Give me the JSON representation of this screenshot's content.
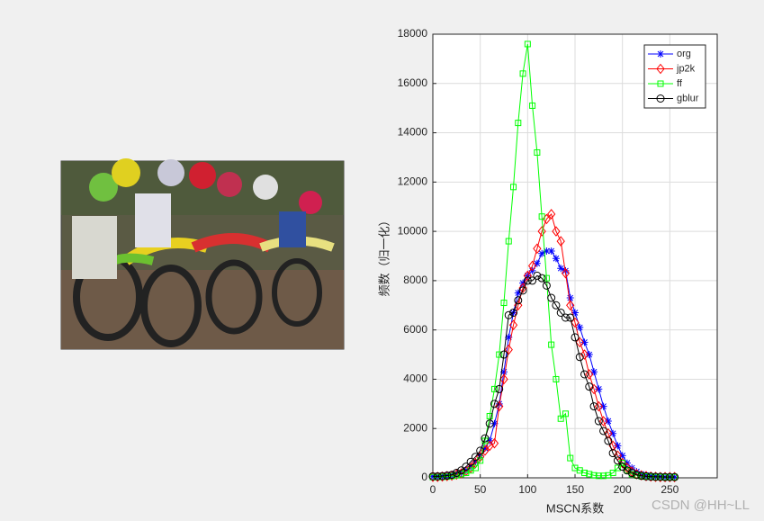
{
  "chart_data": {
    "type": "line",
    "xlabel": "MSCN系数",
    "ylabel": "频数（归一化）",
    "watermark": "CSDN @HH~LL",
    "xlim": [
      0,
      300
    ],
    "xticks": [
      0,
      50,
      100,
      150,
      200,
      250
    ],
    "ylim": [
      0,
      18000
    ],
    "yticks": [
      0,
      2000,
      4000,
      6000,
      8000,
      10000,
      12000,
      14000,
      16000,
      18000
    ],
    "grid": true,
    "legend": "upper right",
    "x": [
      0,
      5,
      10,
      15,
      20,
      25,
      30,
      35,
      40,
      45,
      50,
      55,
      60,
      65,
      70,
      75,
      80,
      85,
      90,
      95,
      100,
      105,
      110,
      115,
      120,
      125,
      130,
      135,
      140,
      145,
      150,
      155,
      160,
      165,
      170,
      175,
      180,
      185,
      190,
      195,
      200,
      205,
      210,
      215,
      220,
      225,
      230,
      235,
      240,
      245,
      250,
      255
    ],
    "series": [
      {
        "name": "org",
        "color": "#0000ff",
        "marker": "star",
        "values": [
          50,
          50,
          60,
          80,
          100,
          150,
          200,
          300,
          450,
          650,
          900,
          1200,
          1500,
          2200,
          3000,
          4300,
          5700,
          6700,
          7500,
          7900,
          8200,
          8400,
          8700,
          9100,
          9200,
          9200,
          8900,
          8500,
          8400,
          7300,
          6700,
          6100,
          5500,
          5000,
          4300,
          3600,
          2900,
          2300,
          1800,
          1300,
          900,
          600,
          400,
          250,
          150,
          100,
          70,
          50,
          40,
          30,
          30,
          30
        ]
      },
      {
        "name": "jp2k",
        "color": "#ff0000",
        "marker": "diamond",
        "values": [
          40,
          40,
          50,
          70,
          90,
          130,
          180,
          270,
          400,
          600,
          850,
          1100,
          1300,
          1400,
          2900,
          4000,
          5200,
          6200,
          7000,
          7700,
          8200,
          8600,
          9300,
          10000,
          10500,
          10700,
          10000,
          9600,
          8300,
          7000,
          6300,
          5500,
          5000,
          4200,
          3600,
          2900,
          2300,
          1800,
          1300,
          900,
          600,
          400,
          250,
          150,
          100,
          70,
          50,
          40,
          30,
          30,
          30,
          30
        ]
      },
      {
        "name": "ff",
        "color": "#00ff00",
        "marker": "square",
        "values": [
          30,
          30,
          40,
          50,
          70,
          100,
          150,
          200,
          300,
          400,
          700,
          1500,
          2500,
          3600,
          5000,
          7100,
          9600,
          11800,
          14400,
          16400,
          17600,
          15100,
          13200,
          10600,
          8100,
          5400,
          4000,
          2400,
          2600,
          800,
          400,
          300,
          200,
          150,
          100,
          80,
          80,
          100,
          200,
          400,
          600,
          300,
          150,
          100,
          70,
          50,
          40,
          30,
          30,
          30,
          30,
          30
        ]
      },
      {
        "name": "gblur",
        "color": "#000000",
        "marker": "circle",
        "values": [
          60,
          60,
          70,
          90,
          120,
          200,
          300,
          450,
          650,
          850,
          1100,
          1600,
          2200,
          3000,
          3600,
          5000,
          6600,
          6700,
          7200,
          7600,
          8000,
          8000,
          8200,
          8100,
          7800,
          7300,
          7000,
          6700,
          6500,
          6500,
          5700,
          4900,
          4200,
          3700,
          2900,
          2300,
          1900,
          1500,
          1000,
          700,
          450,
          300,
          200,
          120,
          80,
          60,
          50,
          40,
          40,
          30,
          30,
          30
        ]
      }
    ]
  }
}
